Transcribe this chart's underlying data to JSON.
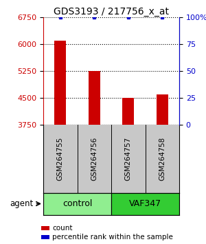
{
  "title": "GDS3193 / 217756_x_at",
  "samples": [
    "GSM264755",
    "GSM264756",
    "GSM264757",
    "GSM264758"
  ],
  "bar_values": [
    6100,
    5250,
    4490,
    4580
  ],
  "percentile_values": [
    100,
    100,
    100,
    100
  ],
  "ylim_left": [
    3750,
    6750
  ],
  "yticks_left": [
    3750,
    4500,
    5250,
    6000,
    6750
  ],
  "yticks_right": [
    0,
    25,
    50,
    75,
    100
  ],
  "bar_color": "#cc0000",
  "percentile_color": "#0000cc",
  "bar_width": 0.35,
  "groups": [
    {
      "label": "control",
      "samples": [
        0,
        1
      ],
      "color": "#90ee90"
    },
    {
      "label": "VAF347",
      "samples": [
        2,
        3
      ],
      "color": "#33cc33"
    }
  ],
  "agent_label": "agent",
  "legend_count_label": "count",
  "legend_pct_label": "percentile rank within the sample",
  "grid_style": "dotted",
  "title_fontsize": 10,
  "tick_fontsize": 8,
  "sample_fontsize": 7.5,
  "group_fontsize": 9,
  "legend_fontsize": 7.5,
  "agent_fontsize": 8.5
}
